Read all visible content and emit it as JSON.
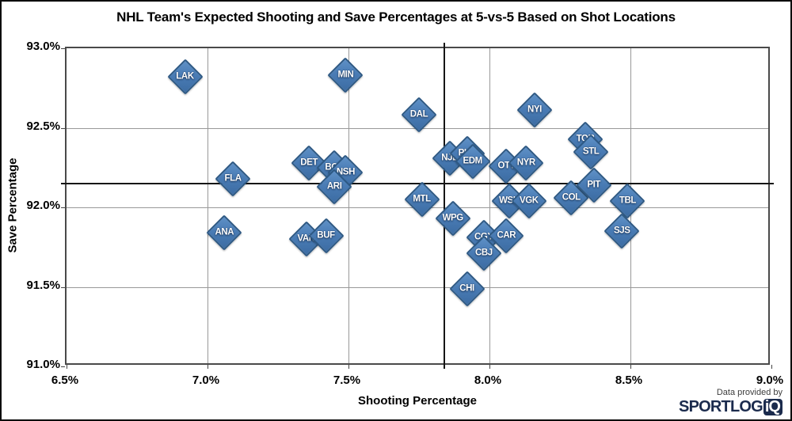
{
  "title": "NHL Team's Expected Shooting and Save Percentages at 5-vs-5 Based on Shot Locations",
  "credit": {
    "pretext": "Data provided by",
    "logo_text": "SPORTLOG",
    "logo_badge": "iQ"
  },
  "chart_data": {
    "type": "scatter",
    "title": "NHL Team's Expected Shooting and Save Percentages at 5-vs-5 Based on Shot Locations",
    "xlabel": "Shooting Percentage",
    "ylabel": "Save Percentage",
    "xlim": [
      6.5,
      9.0
    ],
    "ylim": [
      91.0,
      93.0
    ],
    "x_ticks": [
      6.5,
      7.0,
      7.5,
      8.0,
      8.5,
      9.0
    ],
    "y_ticks": [
      91.0,
      91.5,
      92.0,
      92.5,
      93.0
    ],
    "tick_format": "percent_1dp",
    "grid": true,
    "legend": "none",
    "marker": {
      "shape": "diamond",
      "fill": "#4a7cb5",
      "stroke": "#2e5984",
      "label_color": "#ffffff"
    },
    "reference_lines": {
      "x_value": 7.84,
      "y_value": 92.15,
      "color": "#161616",
      "note": "league average shooting and save percentage crosshairs"
    },
    "points": [
      {
        "team": "LAK",
        "x": 6.92,
        "y": 92.82
      },
      {
        "team": "MIN",
        "x": 7.49,
        "y": 92.83
      },
      {
        "team": "DAL",
        "x": 7.75,
        "y": 92.58
      },
      {
        "team": "NYI",
        "x": 8.16,
        "y": 92.61
      },
      {
        "team": "FLA",
        "x": 7.09,
        "y": 92.18
      },
      {
        "team": "DET",
        "x": 7.36,
        "y": 92.28
      },
      {
        "team": "BOS",
        "x": 7.45,
        "y": 92.25
      },
      {
        "team": "NSH",
        "x": 7.49,
        "y": 92.22
      },
      {
        "team": "ARI",
        "x": 7.45,
        "y": 92.13
      },
      {
        "team": "NJD",
        "x": 7.86,
        "y": 92.31
      },
      {
        "team": "PHL",
        "x": 7.92,
        "y": 92.34
      },
      {
        "team": "EDM",
        "x": 7.94,
        "y": 92.29
      },
      {
        "team": "OTT",
        "x": 8.06,
        "y": 92.26
      },
      {
        "team": "NYR",
        "x": 8.13,
        "y": 92.28
      },
      {
        "team": "TOR",
        "x": 8.34,
        "y": 92.43
      },
      {
        "team": "STL",
        "x": 8.36,
        "y": 92.35
      },
      {
        "team": "MTL",
        "x": 7.76,
        "y": 92.05
      },
      {
        "team": "WPG",
        "x": 7.87,
        "y": 91.93
      },
      {
        "team": "WSH",
        "x": 8.07,
        "y": 92.04
      },
      {
        "team": "VGK",
        "x": 8.14,
        "y": 92.04
      },
      {
        "team": "COL",
        "x": 8.29,
        "y": 92.06
      },
      {
        "team": "PIT",
        "x": 8.37,
        "y": 92.14
      },
      {
        "team": "TBL",
        "x": 8.49,
        "y": 92.04
      },
      {
        "team": "SJS",
        "x": 8.47,
        "y": 91.85
      },
      {
        "team": "ANA",
        "x": 7.06,
        "y": 91.84
      },
      {
        "team": "VAN",
        "x": 7.35,
        "y": 91.8
      },
      {
        "team": "BUF",
        "x": 7.42,
        "y": 91.82
      },
      {
        "team": "CGY",
        "x": 7.98,
        "y": 91.81
      },
      {
        "team": "CAR",
        "x": 8.06,
        "y": 91.82
      },
      {
        "team": "CBJ",
        "x": 7.98,
        "y": 91.71
      },
      {
        "team": "CHI",
        "x": 7.92,
        "y": 91.49
      }
    ]
  }
}
